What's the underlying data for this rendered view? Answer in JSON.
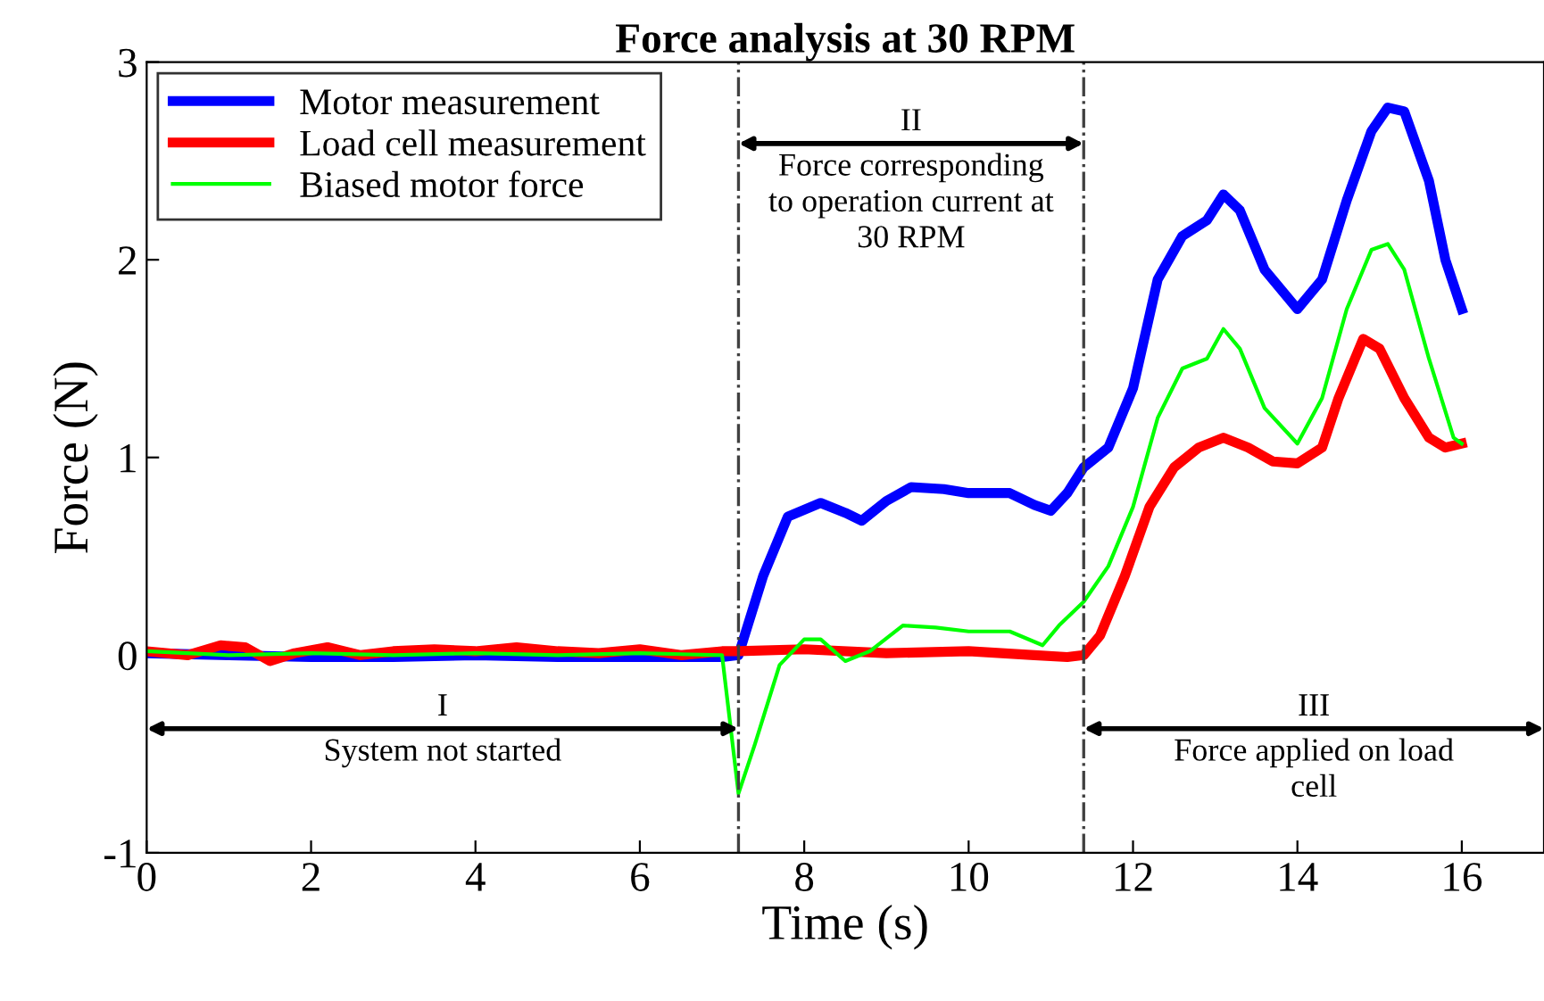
{
  "chart_data": {
    "type": "line",
    "title": "Force analysis at 30 RPM",
    "xlabel": "Time (s)",
    "ylabel": "Force (N)",
    "xlim": [
      0,
      17
    ],
    "ylim": [
      -1,
      3
    ],
    "xticks": [
      0,
      2,
      4,
      6,
      8,
      10,
      12,
      14,
      16
    ],
    "yticks": [
      {
        "value": -1,
        "label": "-1"
      },
      0,
      1,
      2,
      3
    ],
    "grid": false,
    "legend": "top left",
    "ref_lines": [
      {
        "axis": "x",
        "value": 7.2,
        "color": "#404040",
        "line_style": "dashdot"
      },
      {
        "axis": "x",
        "value": 11.4,
        "color": "#404040",
        "line_style": "dashdot"
      }
    ],
    "annotations": [
      "I\nSystem not started",
      "II\nForce corresponding\nto operation current at\n30 RPM",
      "III\nForce applied on load\ncell"
    ],
    "series": [
      {
        "name": "Motor measurement",
        "color": "#0000ff",
        "x": [
          0,
          1,
          2,
          3,
          4,
          5,
          6,
          7,
          7.2,
          7.5,
          7.8,
          8.2,
          8.5,
          8.7,
          9.0,
          9.3,
          9.7,
          10.0,
          10.5,
          10.8,
          11.0,
          11.2,
          11.4,
          11.7,
          12.0,
          12.3,
          12.6,
          12.9,
          13.1,
          13.3,
          13.6,
          14.0,
          14.3,
          14.6,
          14.9,
          15.1,
          15.3,
          15.6,
          15.8,
          16.0
        ],
        "values": [
          0.01,
          0.0,
          -0.01,
          -0.01,
          0.0,
          -0.01,
          -0.01,
          -0.01,
          0.0,
          0.4,
          0.7,
          0.77,
          0.72,
          0.68,
          0.78,
          0.85,
          0.84,
          0.82,
          0.82,
          0.76,
          0.73,
          0.82,
          0.95,
          1.05,
          1.35,
          1.9,
          2.12,
          2.2,
          2.33,
          2.25,
          1.95,
          1.75,
          1.9,
          2.3,
          2.65,
          2.77,
          2.75,
          2.4,
          2.0,
          1.75
        ]
      },
      {
        "name": "Load cell measurement",
        "color": "#ff0000",
        "x": [
          0,
          0.5,
          0.9,
          1.2,
          1.5,
          1.8,
          2.2,
          2.6,
          3.0,
          3.5,
          4.0,
          4.5,
          5.0,
          5.5,
          6.0,
          6.5,
          7.0,
          7.2,
          8.0,
          9.0,
          10.0,
          10.8,
          11.2,
          11.4,
          11.6,
          11.9,
          12.2,
          12.5,
          12.8,
          13.1,
          13.4,
          13.7,
          14.0,
          14.3,
          14.5,
          14.8,
          15.0,
          15.3,
          15.6,
          15.8,
          16.0
        ],
        "values": [
          0.02,
          0.0,
          0.05,
          0.04,
          -0.03,
          0.01,
          0.04,
          0.0,
          0.02,
          0.03,
          0.02,
          0.04,
          0.02,
          0.01,
          0.03,
          0.0,
          0.02,
          0.02,
          0.03,
          0.01,
          0.02,
          0.0,
          -0.01,
          0.0,
          0.1,
          0.4,
          0.75,
          0.95,
          1.05,
          1.1,
          1.05,
          0.98,
          0.97,
          1.05,
          1.3,
          1.6,
          1.55,
          1.3,
          1.1,
          1.05,
          1.07
        ]
      },
      {
        "name": "Biased motor force",
        "color": "#00ff00",
        "x": [
          0,
          1,
          2,
          3,
          4,
          5,
          6,
          7,
          7.2,
          7.4,
          7.7,
          8.0,
          8.2,
          8.5,
          8.8,
          9.2,
          9.6,
          10.0,
          10.5,
          10.9,
          11.1,
          11.4,
          11.7,
          12.0,
          12.3,
          12.6,
          12.9,
          13.1,
          13.3,
          13.6,
          14.0,
          14.3,
          14.6,
          14.9,
          15.1,
          15.3,
          15.6,
          15.9,
          16.0
        ],
        "values": [
          0.02,
          0.0,
          0.01,
          0.0,
          0.01,
          0.0,
          0.01,
          0.0,
          -0.7,
          -0.45,
          -0.05,
          0.08,
          0.08,
          -0.03,
          0.02,
          0.15,
          0.14,
          0.12,
          0.12,
          0.05,
          0.15,
          0.27,
          0.45,
          0.75,
          1.2,
          1.45,
          1.5,
          1.65,
          1.55,
          1.25,
          1.07,
          1.3,
          1.75,
          2.05,
          2.08,
          1.95,
          1.5,
          1.1,
          1.07
        ]
      }
    ]
  }
}
